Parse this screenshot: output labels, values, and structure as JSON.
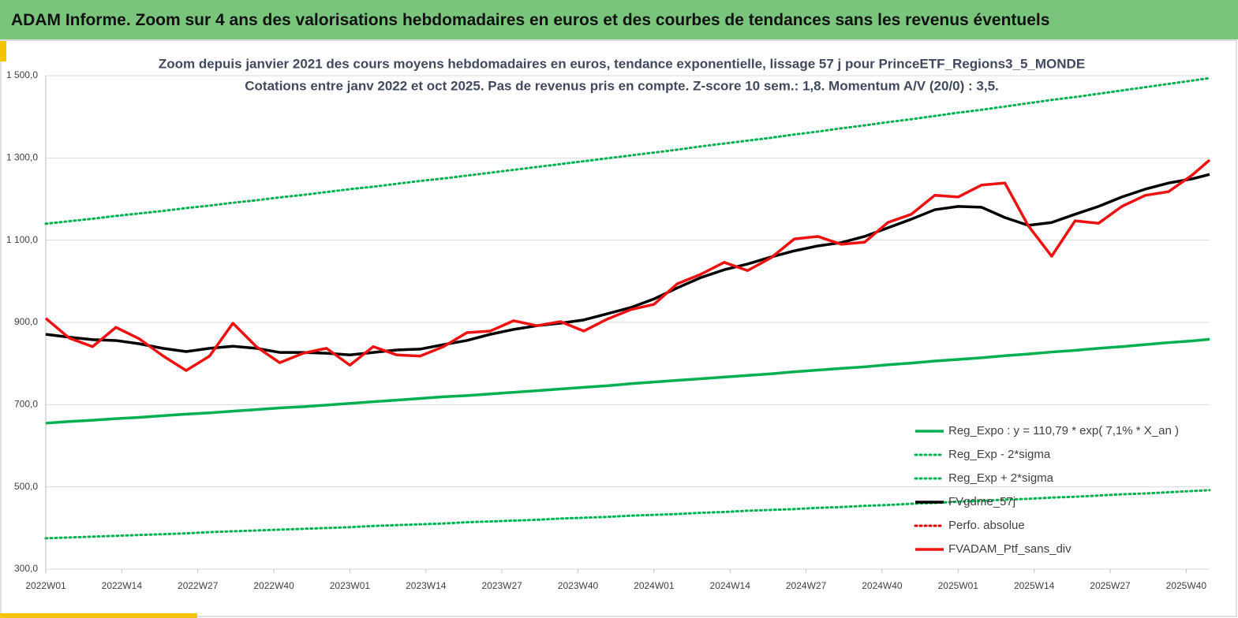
{
  "header": {
    "title": "ADAM Informe. Zoom sur 4 ans des valorisations hebdomadaires en euros et des courbes de tendances sans les revenus éventuels"
  },
  "chart_data": {
    "type": "line",
    "title": "Zoom depuis janvier 2021 des cours moyens hebdomadaires  en euros, tendance exponentielle, lissage 57 j pour PrinceETF_Regions3_5_MONDE",
    "subtitle": "Cotations entre janv 2022 et oct 2025. Pas de revenus pris en compte. Z-score 10 sem.: 1,8. Momentum A/V (20/0) : 3,5.",
    "x": [
      0,
      4,
      8,
      12,
      16,
      20,
      24,
      28,
      32,
      36,
      40,
      44,
      48,
      52,
      56,
      60,
      64,
      68,
      72,
      76,
      80,
      84,
      88,
      92,
      96,
      100,
      104,
      108,
      112,
      116,
      120,
      124,
      128,
      132,
      136,
      140,
      144,
      148,
      152,
      156,
      160,
      164,
      168,
      172,
      176,
      180,
      184,
      188,
      192,
      196,
      199
    ],
    "xlim": [
      0,
      199
    ],
    "xticks": [
      {
        "value": 0,
        "label": "2022W01"
      },
      {
        "value": 13,
        "label": "2022W14"
      },
      {
        "value": 26,
        "label": "2022W27"
      },
      {
        "value": 39,
        "label": "2022W40"
      },
      {
        "value": 52,
        "label": "2023W01"
      },
      {
        "value": 65,
        "label": "2023W14"
      },
      {
        "value": 78,
        "label": "2023W27"
      },
      {
        "value": 91,
        "label": "2023W40"
      },
      {
        "value": 104,
        "label": "2024W01"
      },
      {
        "value": 117,
        "label": "2024W14"
      },
      {
        "value": 130,
        "label": "2024W27"
      },
      {
        "value": 143,
        "label": "2024W40"
      },
      {
        "value": 156,
        "label": "2025W01"
      },
      {
        "value": 169,
        "label": "2025W14"
      },
      {
        "value": 182,
        "label": "2025W27"
      },
      {
        "value": 195,
        "label": "2025W40"
      }
    ],
    "ylim": [
      300,
      1500
    ],
    "yticks": [
      {
        "value": 300,
        "label": "300,0"
      },
      {
        "value": 500,
        "label": "500,0"
      },
      {
        "value": 700,
        "label": "700,0"
      },
      {
        "value": 900,
        "label": "900,0"
      },
      {
        "value": 1100,
        "label": "1 100,0"
      },
      {
        "value": 1300,
        "label": "1 300,0"
      },
      {
        "value": 1500,
        "label": "1 500,0"
      }
    ],
    "grid": true,
    "legend": "lower-right",
    "series": [
      {
        "name": "Reg_Expo : y = 110,79 * exp( 7,1% *  X_an )",
        "color": "#00b050",
        "style": "solid",
        "values": [
          655,
          659,
          662,
          666,
          669,
          673,
          677,
          680,
          684,
          688,
          692,
          695,
          699,
          703,
          707,
          711,
          715,
          719,
          722,
          726,
          730,
          734,
          738,
          742,
          746,
          751,
          755,
          759,
          763,
          767,
          771,
          775,
          780,
          784,
          788,
          792,
          797,
          801,
          806,
          810,
          814,
          819,
          823,
          828,
          832,
          837,
          841,
          846,
          851,
          855,
          859
        ]
      },
      {
        "name": "Reg_Exp - 2*sigma",
        "color": "#00b050",
        "style": "dotted",
        "values": [
          375,
          377,
          379,
          381,
          383,
          385,
          387,
          390,
          392,
          394,
          396,
          398,
          400,
          402,
          405,
          407,
          409,
          411,
          414,
          416,
          418,
          420,
          423,
          425,
          427,
          430,
          432,
          434,
          437,
          439,
          442,
          444,
          446,
          449,
          451,
          454,
          456,
          459,
          461,
          464,
          466,
          469,
          471,
          474,
          476,
          479,
          482,
          484,
          487,
          490,
          492
        ]
      },
      {
        "name": "Reg_Exp + 2*sigma",
        "color": "#00b050",
        "style": "dotted",
        "values": [
          1140,
          1146,
          1152,
          1159,
          1165,
          1171,
          1178,
          1184,
          1191,
          1197,
          1204,
          1210,
          1217,
          1224,
          1230,
          1237,
          1244,
          1250,
          1257,
          1264,
          1271,
          1278,
          1285,
          1292,
          1299,
          1306,
          1313,
          1320,
          1328,
          1335,
          1342,
          1349,
          1357,
          1364,
          1372,
          1379,
          1387,
          1394,
          1402,
          1410,
          1417,
          1425,
          1433,
          1441,
          1448,
          1456,
          1464,
          1472,
          1480,
          1488,
          1494
        ]
      },
      {
        "name": "FVgdme_57j",
        "color": "#000000",
        "style": "solid",
        "values": [
          871,
          864,
          858,
          856,
          848,
          837,
          829,
          837,
          842,
          837,
          827,
          827,
          825,
          821,
          827,
          833,
          835,
          846,
          856,
          871,
          883,
          892,
          898,
          906,
          921,
          936,
          957,
          984,
          1009,
          1028,
          1042,
          1059,
          1074,
          1086,
          1094,
          1109,
          1130,
          1151,
          1174,
          1182,
          1180,
          1155,
          1136,
          1143,
          1163,
          1182,
          1205,
          1224,
          1239,
          1249,
          1260
        ]
      },
      {
        "name": "Perfo. absolue",
        "color": "#e00000",
        "style": "dotted"
      },
      {
        "name": "FVADAM_Ptf_sans_div",
        "color": "#ee1111",
        "style": "solid",
        "values": [
          910,
          862,
          841,
          888,
          860,
          819,
          783,
          818,
          898,
          841,
          802,
          825,
          837,
          796,
          841,
          821,
          818,
          841,
          875,
          879,
          904,
          892,
          902,
          879,
          908,
          931,
          944,
          994,
          1017,
          1046,
          1026,
          1057,
          1103,
          1109,
          1090,
          1095,
          1143,
          1163,
          1209,
          1205,
          1234,
          1239,
          1135,
          1061,
          1147,
          1141,
          1182,
          1209,
          1218,
          1258,
          1295
        ]
      }
    ]
  }
}
